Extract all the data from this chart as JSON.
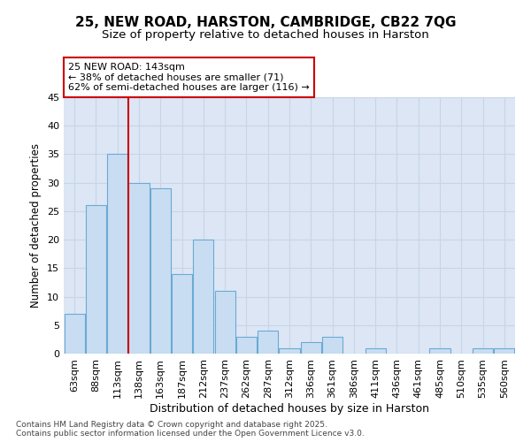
{
  "title": "25, NEW ROAD, HARSTON, CAMBRIDGE, CB22 7QG",
  "subtitle": "Size of property relative to detached houses in Harston",
  "xlabel": "Distribution of detached houses by size in Harston",
  "ylabel": "Number of detached properties",
  "categories": [
    "63sqm",
    "88sqm",
    "113sqm",
    "138sqm",
    "163sqm",
    "187sqm",
    "212sqm",
    "237sqm",
    "262sqm",
    "287sqm",
    "312sqm",
    "336sqm",
    "361sqm",
    "386sqm",
    "411sqm",
    "436sqm",
    "461sqm",
    "485sqm",
    "510sqm",
    "535sqm",
    "560sqm"
  ],
  "values": [
    7,
    26,
    35,
    30,
    29,
    14,
    20,
    11,
    3,
    4,
    1,
    2,
    3,
    0,
    1,
    0,
    0,
    1,
    0,
    1,
    1
  ],
  "bar_color": "#c9ddf2",
  "bar_edge_color": "#6aaad4",
  "grid_color": "#c8d4e8",
  "background_color": "#dce6f5",
  "annotation_box_text": "25 NEW ROAD: 143sqm\n← 38% of detached houses are smaller (71)\n62% of semi-detached houses are larger (116) →",
  "annotation_box_color": "#cc0000",
  "vline_color": "#cc0000",
  "ylim": [
    0,
    45
  ],
  "yticks": [
    0,
    5,
    10,
    15,
    20,
    25,
    30,
    35,
    40,
    45
  ],
  "footer_text": "Contains HM Land Registry data © Crown copyright and database right 2025.\nContains public sector information licensed under the Open Government Licence v3.0.",
  "title_fontsize": 11,
  "subtitle_fontsize": 9.5,
  "xlabel_fontsize": 9,
  "ylabel_fontsize": 8.5,
  "tick_fontsize": 8,
  "footer_fontsize": 6.5
}
